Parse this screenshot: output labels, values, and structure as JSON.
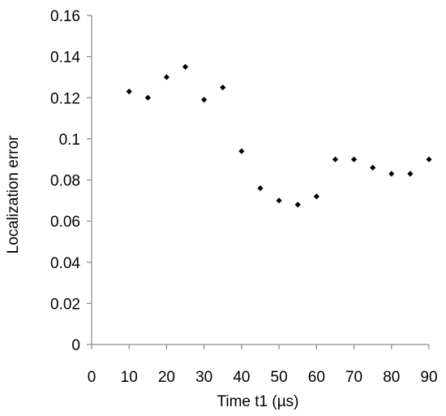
{
  "chart_data": {
    "type": "scatter",
    "title": "",
    "xlabel": "Time t1 (µs)",
    "ylabel": "Localization error",
    "xlim": [
      0,
      90
    ],
    "ylim": [
      0,
      0.16
    ],
    "xticks": [
      0,
      10,
      20,
      30,
      40,
      50,
      60,
      70,
      80,
      90
    ],
    "xtick_labels": [
      "0",
      "10",
      "20",
      "30",
      "40",
      "50",
      "60",
      "70",
      "80",
      "90"
    ],
    "yticks": [
      0,
      0.02,
      0.04,
      0.06,
      0.08,
      0.1,
      0.12,
      0.14,
      0.16
    ],
    "ytick_labels": [
      "0",
      "0.02",
      "0.04",
      "0.06",
      "0.08",
      "0.1",
      "0.12",
      "0.14",
      "0.16"
    ],
    "grid": false,
    "marker": "diamond",
    "marker_color": "#000000",
    "series": [
      {
        "x": [
          10,
          15,
          20,
          25,
          30,
          35,
          40,
          45,
          50,
          55,
          60,
          65,
          70,
          75,
          80,
          85,
          90
        ],
        "y": [
          0.123,
          0.12,
          0.13,
          0.135,
          0.119,
          0.125,
          0.094,
          0.076,
          0.07,
          0.068,
          0.072,
          0.09,
          0.09,
          0.086,
          0.083,
          0.083,
          0.09
        ]
      }
    ]
  }
}
